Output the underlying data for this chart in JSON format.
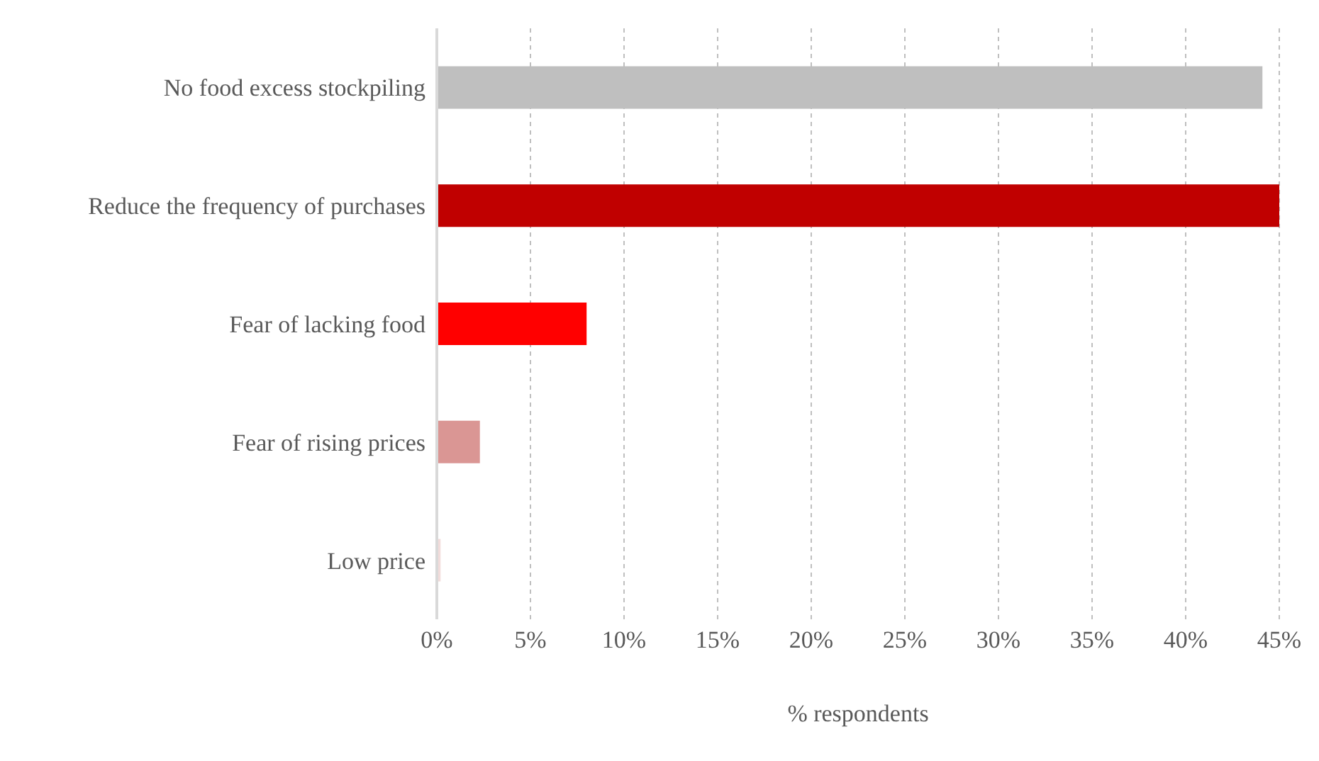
{
  "chart_data": {
    "type": "bar",
    "orientation": "horizontal",
    "xlabel": "% respondents",
    "categories": [
      "No food excess stockpiling",
      "Reduce the frequency of purchases",
      "Fear of lacking food",
      "Fear of rising prices",
      "Low price"
    ],
    "values": [
      44.1,
      45,
      8,
      2.3,
      0.2
    ],
    "colors": [
      "#bfbfbf",
      "#c00000",
      "#ff0000",
      "#da9694",
      "#f2dcdb"
    ],
    "xlim": [
      0,
      45
    ],
    "xticks": [
      {
        "value": 0,
        "label": "0%"
      },
      {
        "value": 5,
        "label": "5%"
      },
      {
        "value": 10,
        "label": "10%"
      },
      {
        "value": 15,
        "label": "15%"
      },
      {
        "value": 20,
        "label": "20%"
      },
      {
        "value": 25,
        "label": "25%"
      },
      {
        "value": 30,
        "label": "30%"
      },
      {
        "value": 35,
        "label": "35%"
      },
      {
        "value": 40,
        "label": "40%"
      },
      {
        "value": 45,
        "label": "45%"
      }
    ],
    "grid": "x"
  }
}
